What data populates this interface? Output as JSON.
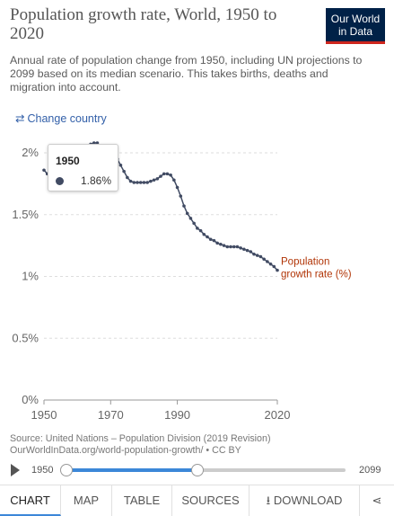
{
  "header": {
    "title": "Population growth rate, World, 1950 to 2020",
    "subtitle": "Annual rate of population change from 1950, including UN projections to 2099 based on its median scenario. This takes births, deaths and migration into account.",
    "logo_line1": "Our World",
    "logo_line2": "in Data",
    "change_country": "Change country"
  },
  "colors": {
    "series": "#414b63",
    "series_label": "#b13507",
    "accent": "#3c87d8",
    "logo_bg": "#002147",
    "logo_stripe": "#ce261e"
  },
  "chart_data": {
    "type": "line",
    "title": "Population growth rate, World, 1950 to 2020",
    "ylim": [
      0,
      2
    ],
    "xlim": [
      1950,
      2020
    ],
    "x_ticks": [
      "1950",
      "1970",
      "1990",
      "2020"
    ],
    "y_ticks": [
      "0%",
      "0.5%",
      "1%",
      "1.5%",
      "2%"
    ],
    "grid": "horizontal dashed",
    "series": [
      {
        "name": "Population growth rate (%)",
        "x": [
          1950,
          1951,
          1952,
          1953,
          1954,
          1955,
          1956,
          1957,
          1958,
          1959,
          1960,
          1961,
          1962,
          1963,
          1964,
          1965,
          1966,
          1967,
          1968,
          1969,
          1970,
          1971,
          1972,
          1973,
          1974,
          1975,
          1976,
          1977,
          1978,
          1979,
          1980,
          1981,
          1982,
          1983,
          1984,
          1985,
          1986,
          1987,
          1988,
          1989,
          1990,
          1991,
          1992,
          1993,
          1994,
          1995,
          1996,
          1997,
          1998,
          1999,
          2000,
          2001,
          2002,
          2003,
          2004,
          2005,
          2006,
          2007,
          2008,
          2009,
          2010,
          2011,
          2012,
          2013,
          2014,
          2015,
          2016,
          2017,
          2018,
          2019,
          2020
        ],
        "y": [
          1.86,
          1.83,
          1.82,
          1.82,
          1.83,
          1.86,
          1.88,
          1.9,
          1.9,
          1.87,
          1.86,
          1.9,
          1.96,
          2.02,
          2.07,
          2.08,
          2.08,
          2.05,
          2.04,
          2.02,
          2.02,
          1.99,
          1.95,
          1.9,
          1.85,
          1.8,
          1.77,
          1.76,
          1.76,
          1.76,
          1.76,
          1.76,
          1.77,
          1.78,
          1.79,
          1.81,
          1.83,
          1.83,
          1.82,
          1.78,
          1.72,
          1.65,
          1.57,
          1.51,
          1.47,
          1.43,
          1.39,
          1.37,
          1.34,
          1.32,
          1.3,
          1.29,
          1.27,
          1.26,
          1.25,
          1.24,
          1.24,
          1.24,
          1.24,
          1.23,
          1.22,
          1.21,
          1.2,
          1.18,
          1.17,
          1.16,
          1.14,
          1.12,
          1.1,
          1.08,
          1.05
        ],
        "label": "Population growth rate (%)"
      }
    ]
  },
  "tooltip": {
    "year": "1950",
    "value": "1.86%"
  },
  "sources": {
    "line1": "Source: United Nations – Population Division (2019 Revision)",
    "line2": "OurWorldInData.org/world-population-growth/ • CC BY"
  },
  "timeline": {
    "start_label": "1950",
    "end_label": "2099",
    "start_year": 1950,
    "end_year": 2099,
    "selected_start": 1950,
    "selected_end": 2020
  },
  "tabs": [
    {
      "label": "CHART",
      "active": true
    },
    {
      "label": "MAP"
    },
    {
      "label": "TABLE"
    },
    {
      "label": "SOURCES"
    },
    {
      "label": "DOWNLOAD"
    }
  ],
  "icons": {
    "change_country": "swap-arrows-icon",
    "download": "download-icon",
    "share": "share-icon",
    "play": "play-icon"
  }
}
